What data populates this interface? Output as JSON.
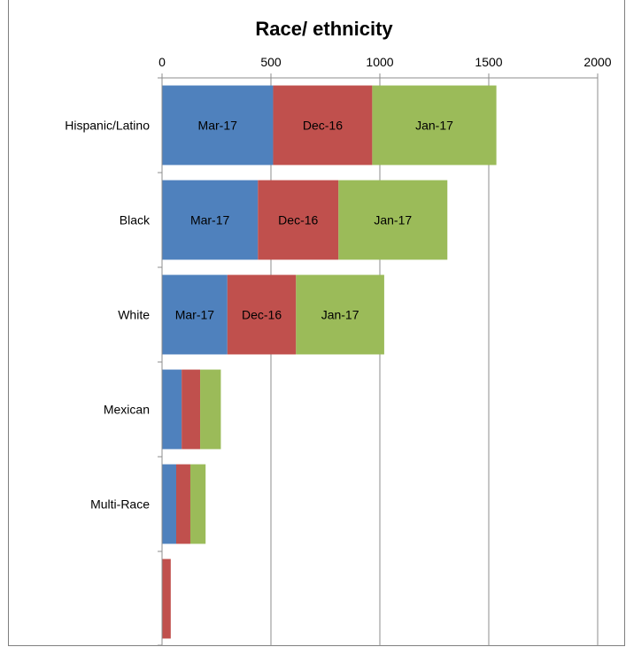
{
  "chart_data": {
    "type": "bar",
    "orientation": "horizontal",
    "stacked": true,
    "title": "Race/ ethnicity",
    "x_axis_position": "top",
    "xlim": [
      0,
      2000
    ],
    "xticks": [
      0,
      500,
      1000,
      1500,
      2000
    ],
    "grid": true,
    "categories": [
      "Hispanic/Latino",
      "Black",
      "White",
      "Mexican",
      "Multi-Race",
      ""
    ],
    "series": [
      {
        "label": "Mar-17",
        "color": "#4f81bd",
        "values": [
          510,
          440,
          300,
          90,
          65,
          0
        ]
      },
      {
        "label": "Dec-16",
        "color": "#c0504d",
        "values": [
          455,
          370,
          315,
          85,
          65,
          40
        ]
      },
      {
        "label": "Jan-17",
        "color": "#9bbb59",
        "values": [
          570,
          500,
          405,
          95,
          70,
          0
        ]
      }
    ],
    "segment_labels_shown_for_categories": 3
  }
}
